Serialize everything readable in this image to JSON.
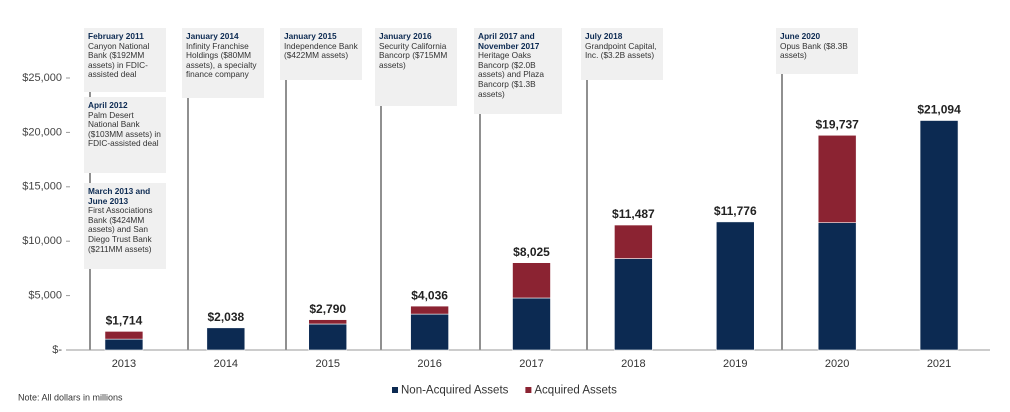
{
  "chart_data": {
    "type": "stacked_bar",
    "categories": [
      "2013",
      "2014",
      "2015",
      "2016",
      "2017",
      "2018",
      "2019",
      "2020",
      "2021"
    ],
    "series": [
      {
        "name": "Non-Acquired Assets",
        "color": "#0c2a52",
        "values": [
          1000,
          2038,
          2390,
          3300,
          4780,
          8400,
          11776,
          11700,
          21094
        ]
      },
      {
        "name": "Acquired Assets",
        "color": "#8b2332",
        "values": [
          714,
          0,
          400,
          736,
          3245,
          3087,
          0,
          8037,
          0
        ]
      }
    ],
    "totals": [
      1714,
      2038,
      2790,
      4036,
      8025,
      11487,
      11776,
      19737,
      21094
    ],
    "total_labels": [
      "$1,714",
      "$2,038",
      "$2,790",
      "$4,036",
      "$8,025",
      "$11,487",
      "$11,776",
      "$19,737",
      "$21,094"
    ],
    "ylim": [
      0,
      25000
    ],
    "yticks": [
      {
        "value": 0,
        "label": "$-"
      },
      {
        "value": 5000,
        "label": "$5,000"
      },
      {
        "value": 10000,
        "label": "$10,000"
      },
      {
        "value": 15000,
        "label": "$15,000"
      },
      {
        "value": 20000,
        "label": "$20,000"
      },
      {
        "value": 25000,
        "label": "$25,000"
      }
    ],
    "legend": "bottom",
    "annotations": [
      {
        "title": "February 2011",
        "text": "Canyon National Bank ($192MM assets) in FDIC-assisted deal"
      },
      {
        "title": "April 2012",
        "text": "Palm Desert National Bank ($103MM assets) in FDIC-assisted deal"
      },
      {
        "title": "March 2013 and June 2013",
        "text": "First Associations Bank ($424MM assets) and San Diego Trust Bank ($211MM assets)"
      },
      {
        "title": "January 2014",
        "text": "Infinity Franchise Holdings ($80MM assets), a specialty finance company"
      },
      {
        "title": "January 2015",
        "text": "Independence Bank ($422MM assets)"
      },
      {
        "title": "January 2016",
        "text": "Security California Bancorp ($715MM assets)"
      },
      {
        "title": "April 2017 and November 2017",
        "text": "Heritage Oaks Bancorp ($2.0B assets) and Plaza Bancorp ($1.3B assets)"
      },
      {
        "title": "July 2018",
        "text": "Grandpoint Capital, Inc. ($3.2B assets)"
      },
      {
        "title": "June 2020",
        "text": "Opus Bank ($8.3B assets)"
      }
    ],
    "note": "Note: All dollars in millions"
  }
}
